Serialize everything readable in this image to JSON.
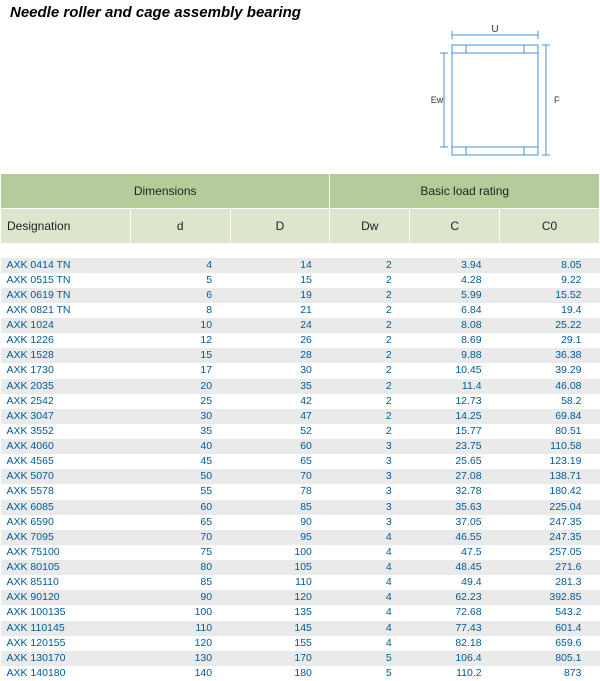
{
  "title": "Needle roller and cage assembly bearing",
  "diagram": {
    "labels": {
      "top": "U",
      "left": "Ew",
      "right": "Fw"
    },
    "stroke": "#4a90d9",
    "stroke_width": 1,
    "text_color": "#333"
  },
  "table": {
    "group_headers": [
      "Dimensions",
      "Basic load rating"
    ],
    "columns": [
      "Designation",
      "d",
      "D",
      "Dw",
      "C",
      "C0"
    ],
    "header_bg_group": "#b5cc9a",
    "header_bg_col": "#dbe6cc",
    "row_alt_bg": "#eaeaea",
    "cell_text_color": "#005B96",
    "rows": [
      [
        "AXK 0414 TN",
        "4",
        "14",
        "2",
        "3.94",
        "8.05"
      ],
      [
        "AXK 0515 TN",
        "5",
        "15",
        "2",
        "4.28",
        "9.22"
      ],
      [
        "AXK 0619 TN",
        "6",
        "19",
        "2",
        "5.99",
        "15.52"
      ],
      [
        "AXK 0821 TN",
        "8",
        "21",
        "2",
        "6.84",
        "19.4"
      ],
      [
        "AXK 1024",
        "10",
        "24",
        "2",
        "8.08",
        "25.22"
      ],
      [
        "AXK 1226",
        "12",
        "26",
        "2",
        "8.69",
        "29.1"
      ],
      [
        "AXK 1528",
        "15",
        "28",
        "2",
        "9.88",
        "36.38"
      ],
      [
        "AXK 1730",
        "17",
        "30",
        "2",
        "10.45",
        "39.29"
      ],
      [
        "AXK 2035",
        "20",
        "35",
        "2",
        "11.4",
        "46.08"
      ],
      [
        "AXK 2542",
        "25",
        "42",
        "2",
        "12.73",
        "58.2"
      ],
      [
        "AXK 3047",
        "30",
        "47",
        "2",
        "14.25",
        "69.84"
      ],
      [
        "AXK 3552",
        "35",
        "52",
        "2",
        "15.77",
        "80.51"
      ],
      [
        "AXK 4060",
        "40",
        "60",
        "3",
        "23.75",
        "110.58"
      ],
      [
        "AXK 4565",
        "45",
        "65",
        "3",
        "25.65",
        "123.19"
      ],
      [
        "AXK 5070",
        "50",
        "70",
        "3",
        "27.08",
        "138.71"
      ],
      [
        "AXK 5578",
        "55",
        "78",
        "3",
        "32.78",
        "180.42"
      ],
      [
        "AXK 6085",
        "60",
        "85",
        "3",
        "35.63",
        "225.04"
      ],
      [
        "AXK 6590",
        "65",
        "90",
        "3",
        "37.05",
        "247.35"
      ],
      [
        "AXK 7095",
        "70",
        "95",
        "4",
        "46.55",
        "247.35"
      ],
      [
        "AXK 75100",
        "75",
        "100",
        "4",
        "47.5",
        "257.05"
      ],
      [
        "AXK 80105",
        "80",
        "105",
        "4",
        "48.45",
        "271.6"
      ],
      [
        "AXK 85110",
        "85",
        "110",
        "4",
        "49.4",
        "281.3"
      ],
      [
        "AXK 90120",
        "90",
        "120",
        "4",
        "62.23",
        "392.85"
      ],
      [
        "AXK 100135",
        "100",
        "135",
        "4",
        "72.68",
        "543.2"
      ],
      [
        "AXK 110145",
        "110",
        "145",
        "4",
        "77.43",
        "601.4"
      ],
      [
        "AXK 120155",
        "120",
        "155",
        "4",
        "82.18",
        "659.6"
      ],
      [
        "AXK 130170",
        "130",
        "170",
        "5",
        "106.4",
        "805.1"
      ],
      [
        "AXK 140180",
        "140",
        "180",
        "5",
        "110.2",
        "873"
      ]
    ]
  }
}
